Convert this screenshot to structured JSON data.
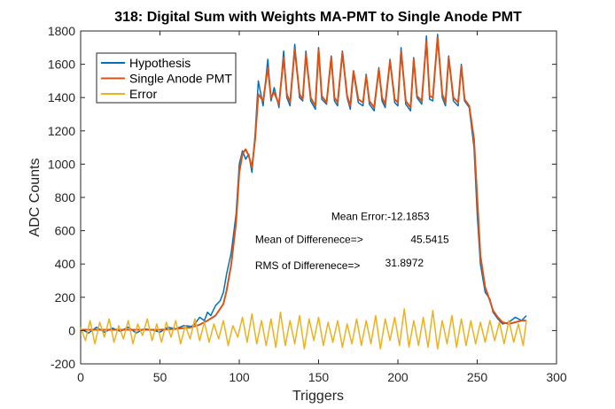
{
  "chart_data": {
    "type": "line",
    "title": "318: Digital Sum with Weights MA-PMT to Single Anode PMT",
    "xlabel": "Triggers",
    "ylabel": "ADC Counts",
    "xlim": [
      0,
      300
    ],
    "ylim": [
      -200,
      1800
    ],
    "xticks": [
      0,
      50,
      100,
      150,
      200,
      250,
      300
    ],
    "yticks": [
      -200,
      0,
      200,
      400,
      600,
      800,
      1000,
      1200,
      1400,
      1600,
      1800
    ],
    "grid": false,
    "legend_position": "top-left",
    "series": [
      {
        "name": "Hypothesis",
        "color": "#0072BD",
        "x": [
          0,
          5,
          10,
          15,
          20,
          25,
          30,
          35,
          40,
          45,
          50,
          55,
          60,
          65,
          70,
          72,
          75,
          78,
          80,
          82,
          85,
          88,
          90,
          92,
          95,
          98,
          100,
          102,
          104,
          106,
          108,
          110,
          112,
          115,
          118,
          120,
          122,
          125,
          128,
          130,
          132,
          135,
          138,
          140,
          142,
          145,
          148,
          150,
          152,
          155,
          158,
          160,
          162,
          165,
          168,
          170,
          172,
          175,
          178,
          180,
          182,
          185,
          188,
          190,
          192,
          195,
          198,
          200,
          202,
          205,
          208,
          210,
          212,
          215,
          218,
          220,
          222,
          225,
          228,
          230,
          232,
          235,
          238,
          240,
          242,
          245,
          248,
          250,
          252,
          255,
          258,
          260,
          263,
          266,
          270,
          274,
          278,
          281
        ],
        "y": [
          10,
          -15,
          20,
          -10,
          15,
          -5,
          20,
          -15,
          10,
          5,
          -10,
          20,
          10,
          30,
          25,
          40,
          80,
          60,
          110,
          90,
          150,
          180,
          230,
          340,
          470,
          700,
          1000,
          1080,
          1030,
          1060,
          950,
          1180,
          1500,
          1350,
          1630,
          1380,
          1460,
          1340,
          1680,
          1400,
          1350,
          1720,
          1400,
          1380,
          1680,
          1380,
          1330,
          1700,
          1390,
          1360,
          1650,
          1380,
          1350,
          1680,
          1400,
          1330,
          1550,
          1370,
          1350,
          1540,
          1360,
          1320,
          1580,
          1380,
          1340,
          1630,
          1370,
          1350,
          1700,
          1360,
          1320,
          1640,
          1400,
          1360,
          1770,
          1390,
          1380,
          1780,
          1400,
          1350,
          1650,
          1380,
          1350,
          1600,
          1380,
          1340,
          1100,
          700,
          400,
          230,
          190,
          110,
          70,
          40,
          50,
          80,
          60,
          90
        ]
      },
      {
        "name": "Single Anode PMT",
        "color": "#D95319",
        "x": [
          0,
          10,
          20,
          30,
          40,
          50,
          60,
          65,
          70,
          75,
          80,
          85,
          90,
          92,
          95,
          98,
          100,
          102,
          104,
          106,
          108,
          110,
          112,
          115,
          118,
          120,
          122,
          125,
          128,
          130,
          132,
          135,
          138,
          140,
          142,
          145,
          148,
          150,
          152,
          155,
          158,
          160,
          162,
          165,
          168,
          170,
          172,
          175,
          178,
          180,
          182,
          185,
          188,
          190,
          192,
          195,
          198,
          200,
          202,
          205,
          208,
          210,
          212,
          215,
          218,
          220,
          222,
          225,
          228,
          230,
          232,
          235,
          238,
          240,
          242,
          245,
          248,
          250,
          252,
          255,
          258,
          260,
          263,
          266,
          270,
          274,
          278,
          281
        ],
        "y": [
          5,
          5,
          5,
          5,
          5,
          5,
          10,
          15,
          20,
          35,
          60,
          90,
          160,
          240,
          400,
          650,
          950,
          1060,
          1090,
          1050,
          980,
          1150,
          1420,
          1380,
          1580,
          1400,
          1430,
          1360,
          1640,
          1420,
          1370,
          1690,
          1420,
          1390,
          1660,
          1400,
          1350,
          1690,
          1410,
          1370,
          1640,
          1400,
          1370,
          1670,
          1410,
          1350,
          1560,
          1390,
          1370,
          1530,
          1380,
          1340,
          1570,
          1400,
          1360,
          1620,
          1390,
          1370,
          1680,
          1380,
          1340,
          1630,
          1410,
          1380,
          1740,
          1410,
          1400,
          1760,
          1420,
          1370,
          1640,
          1400,
          1370,
          1590,
          1390,
          1350,
          1150,
          800,
          450,
          260,
          180,
          120,
          80,
          50,
          40,
          50,
          60,
          60
        ]
      },
      {
        "name": "Error",
        "color": "#EDB120",
        "x": [
          0,
          3,
          6,
          9,
          12,
          15,
          18,
          21,
          24,
          27,
          30,
          33,
          36,
          39,
          42,
          45,
          48,
          51,
          54,
          57,
          60,
          63,
          66,
          69,
          72,
          75,
          78,
          81,
          84,
          87,
          90,
          93,
          96,
          99,
          102,
          105,
          108,
          111,
          114,
          117,
          120,
          123,
          126,
          129,
          132,
          135,
          138,
          141,
          144,
          147,
          150,
          153,
          156,
          159,
          162,
          165,
          168,
          171,
          174,
          177,
          180,
          183,
          186,
          189,
          192,
          195,
          198,
          201,
          204,
          207,
          210,
          213,
          216,
          219,
          222,
          225,
          228,
          231,
          234,
          237,
          240,
          243,
          246,
          249,
          252,
          255,
          258,
          261,
          264,
          267,
          270,
          273,
          276,
          279,
          281
        ],
        "y": [
          20,
          -60,
          60,
          -80,
          50,
          -40,
          70,
          -70,
          30,
          -50,
          60,
          -80,
          40,
          -30,
          70,
          -60,
          40,
          -70,
          50,
          -40,
          60,
          -80,
          30,
          -50,
          70,
          -60,
          50,
          -70,
          40,
          -50,
          60,
          -90,
          30,
          -40,
          80,
          -70,
          100,
          -80,
          60,
          -90,
          70,
          -100,
          110,
          -90,
          60,
          -80,
          90,
          -110,
          70,
          -60,
          80,
          -90,
          50,
          -70,
          60,
          -100,
          40,
          -80,
          70,
          -90,
          60,
          -80,
          90,
          -110,
          70,
          -60,
          80,
          -90,
          130,
          -100,
          60,
          -90,
          80,
          -100,
          120,
          -110,
          60,
          -80,
          90,
          -100,
          70,
          -90,
          60,
          -80,
          50,
          -70,
          60,
          -60,
          50,
          -80,
          60,
          -70,
          40,
          -90,
          60
        ]
      }
    ],
    "annotations": [
      {
        "text": "Mean Error:-12.1853",
        "x": 158,
        "y": 665
      },
      {
        "text": "Mean of Differenece=>",
        "x": 110,
        "y": 525
      },
      {
        "text": "45.5415",
        "x": 208,
        "y": 525
      },
      {
        "text": "RMS of Differenece=>",
        "x": 110,
        "y": 370
      },
      {
        "text": "31.8972",
        "x": 192,
        "y": 385
      }
    ]
  }
}
